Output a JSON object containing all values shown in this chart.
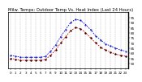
{
  "title": "Milw. Temps: Outdoor Temp Vs. Heat Index (Last 24 Hours)",
  "background_color": "#ffffff",
  "grid_color": "#aaaaaa",
  "x_labels": [
    "0",
    "1",
    "2",
    "3",
    "4",
    "5",
    "6",
    "7",
    "8",
    "9",
    "10",
    "11",
    "12",
    "13",
    "14",
    "15",
    "16",
    "17",
    "18",
    "19",
    "20",
    "21",
    "22",
    "23"
  ],
  "outdoor_temp": [
    55,
    54,
    53,
    53,
    53,
    53,
    53,
    54,
    58,
    63,
    70,
    76,
    82,
    85,
    84,
    80,
    75,
    70,
    66,
    63,
    61,
    59,
    58,
    57
  ],
  "heat_index": [
    58,
    57,
    56,
    56,
    56,
    56,
    56,
    57,
    62,
    68,
    76,
    83,
    90,
    93,
    92,
    88,
    83,
    77,
    73,
    69,
    67,
    65,
    63,
    62
  ],
  "outdoor_color": "#cc0000",
  "heat_color": "#0000cc",
  "black_marker_series": [
    55,
    54,
    53,
    53,
    53,
    53,
    53,
    54,
    58,
    63,
    70,
    76,
    82,
    85,
    84,
    80,
    75,
    70,
    66,
    63,
    61,
    59,
    58,
    57
  ],
  "ylim_min": 45,
  "ylim_max": 100,
  "yticks": [
    50,
    55,
    60,
    65,
    70,
    75,
    80,
    85,
    90,
    95
  ],
  "ytick_labels": [
    "50",
    "55",
    "60",
    "65",
    "70",
    "75",
    "80",
    "85",
    "90",
    "95"
  ],
  "title_fontsize": 3.8,
  "tick_fontsize": 3.0,
  "line_width": 0.6,
  "marker_size": 1.0
}
